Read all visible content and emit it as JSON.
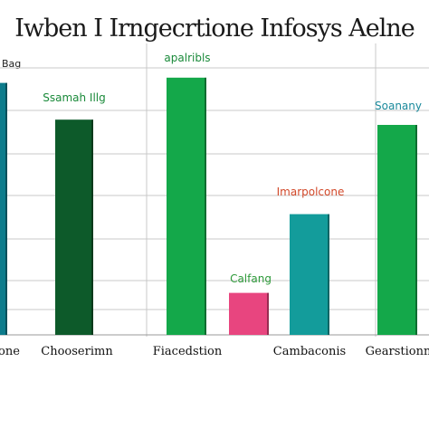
{
  "chart_data": {
    "type": "bar",
    "title": "Iwben I Irngecrtione Infosys Aelne",
    "ylabel": "",
    "xlabel": "",
    "corner_label": "Bag",
    "ylim": [
      0,
      100
    ],
    "grid": true,
    "categories": [
      "one",
      "Chooserimn",
      "Fiacedstion",
      "",
      "Cambaconis",
      "Gearstionn"
    ],
    "bars": [
      {
        "category": "one",
        "value": 96,
        "color": "#0d7c8c",
        "label": ""
      },
      {
        "category": "Chooserimn",
        "value": 82,
        "color": "#0d5a2a",
        "label": "Ssamah Illg"
      },
      {
        "category": "Fiacedstion",
        "value": 98,
        "color": "#14a84a",
        "label": "apalribls"
      },
      {
        "category": "",
        "value": 16,
        "color": "#e8457f",
        "label": "Calfang"
      },
      {
        "category": "Cambaconis",
        "value": 46,
        "color": "#139c9b",
        "label": "Imarpolcone"
      },
      {
        "category": "Gearstionn",
        "value": 80,
        "color": "#14a84a",
        "label": "Soanany"
      }
    ],
    "label_colors": {
      "Ssamah Illg": "#1a8a3a",
      "apalribls": "#1a8a3a",
      "Calfang": "#2e9a3a",
      "Imarpolcone": "#d2492a",
      "Soanany": "#1b8a9c"
    }
  }
}
